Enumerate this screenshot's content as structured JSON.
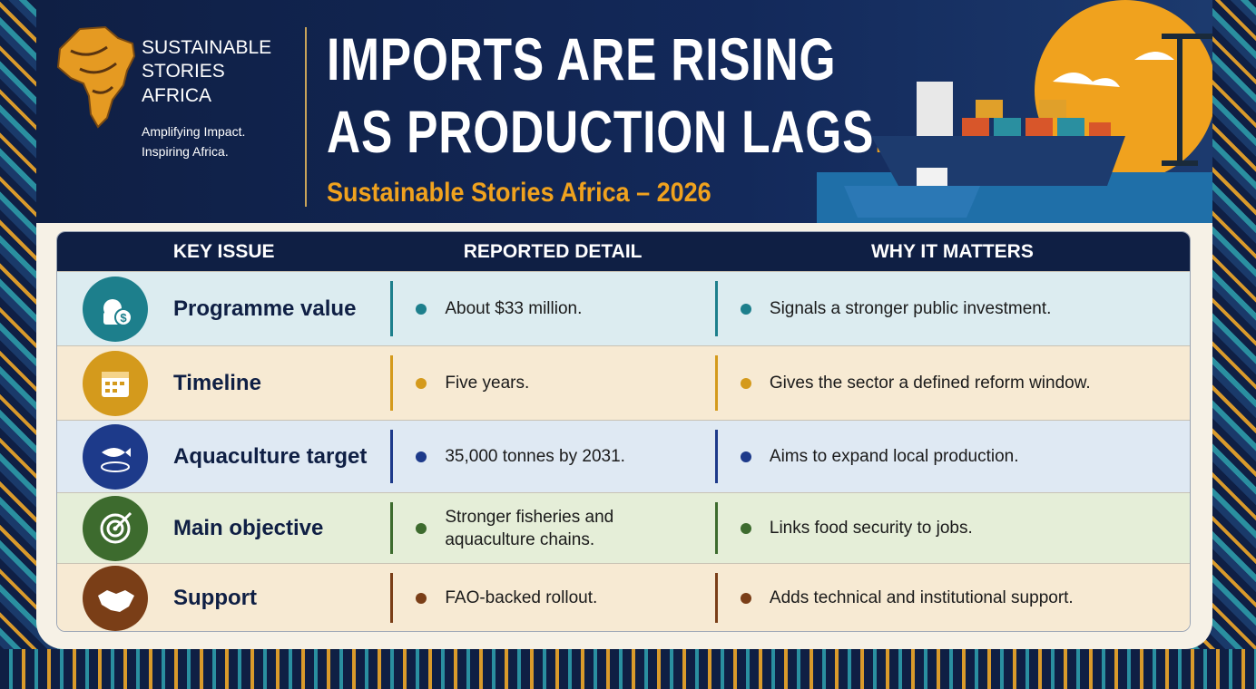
{
  "header": {
    "brand": {
      "line1": "SUSTAINABLE",
      "line2": "STORIES",
      "line3": "AFRICA",
      "tagline1": "Amplifying Impact.",
      "tagline2": "Inspiring Africa."
    },
    "title": {
      "line1": "IMPORTS ARE RISING",
      "line2": "AS PRODUCTION LAGS",
      "period": "."
    },
    "subtitle": "Sustainable Stories Africa – 2026"
  },
  "table": {
    "columns": [
      "KEY ISSUE",
      "REPORTED DETAIL",
      "WHY IT MATTERS"
    ],
    "rows": [
      [
        "Programme value",
        "About $33 million.",
        "Signals a stronger public investment."
      ],
      [
        "Timeline",
        "Five years.",
        "Gives the sector a defined reform window."
      ],
      [
        "Aquaculture target",
        "35,000 tonnes by 2031.",
        "Aims to expand local production."
      ],
      [
        "Main objective",
        "Stronger fisheries and aquaculture chains.",
        "Links food security to jobs."
      ],
      [
        "Support",
        "FAO-backed rollout.",
        "Adds technical and institutional support."
      ]
    ]
  }
}
